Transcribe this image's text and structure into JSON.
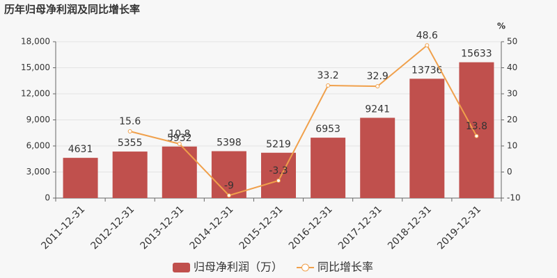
{
  "chart_data": {
    "type": "bar",
    "title": "历年归母净利润及同比增长率",
    "categories": [
      "2011-12-31",
      "2012-12-31",
      "2013-12-31",
      "2014-12-31",
      "2015-12-31",
      "2016-12-31",
      "2017-12-31",
      "2018-12-31",
      "2019-12-31"
    ],
    "series": [
      {
        "name": "归母净利润（万）",
        "type": "bar",
        "color": "#c0504d",
        "values": [
          4631,
          5355,
          5932,
          5398,
          5219,
          6953,
          9241,
          13736,
          15633
        ]
      },
      {
        "name": "同比增长率",
        "type": "line",
        "axis": "y2",
        "color": "#f0a04b",
        "values": [
          null,
          15.6,
          10.8,
          -9,
          -3.3,
          33.2,
          32.9,
          48.6,
          13.8
        ]
      }
    ],
    "ylim": [
      0,
      18000
    ],
    "yticks": [
      0,
      {
        "value": 3000,
        "label": "3,000"
      },
      {
        "value": 6000,
        "label": "6,000"
      },
      {
        "value": 9000,
        "label": "9,000"
      },
      {
        "value": 12000,
        "label": "12,000"
      },
      {
        "value": 15000,
        "label": "15,000"
      },
      {
        "value": 18000,
        "label": "18,000"
      }
    ],
    "y2label": "%",
    "y2lim": [
      -10,
      50
    ],
    "y2ticks": [
      -10,
      0,
      10,
      20,
      30,
      40,
      50
    ],
    "grid": true,
    "legend": "bottom"
  }
}
